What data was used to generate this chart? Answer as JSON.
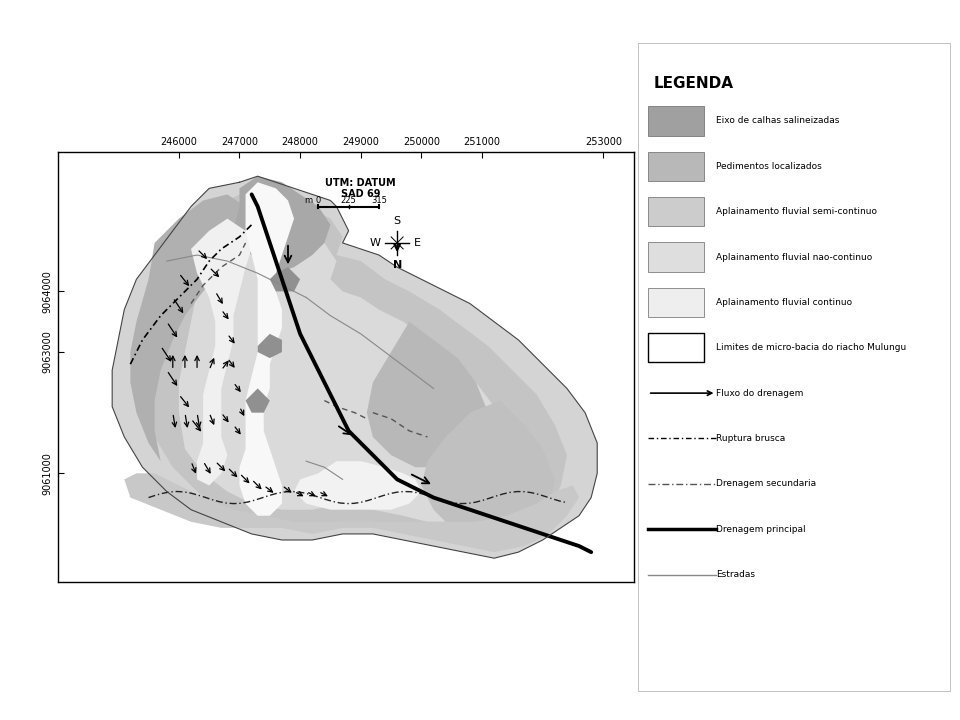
{
  "xlim": [
    244000,
    253500
  ],
  "ylim": [
    9059200,
    9066300
  ],
  "xticks": [
    246000,
    247000,
    248000,
    249000,
    250000,
    251000,
    253000
  ],
  "yticks": [
    9061000,
    9063000,
    9064000
  ],
  "background_color": "#ffffff",
  "colors": {
    "outer_basin": "#c8c8c8",
    "dark_gray": "#a0a0a0",
    "medium_gray": "#b8b8b8",
    "light_gray": "#d4d4d4",
    "lighter_gray": "#e0e0e0",
    "lightest_gray": "#eeeeee",
    "white_zone": "#f8f8f8",
    "river_white": "#ffffff",
    "main_river": "#000000",
    "boundary": "#333333"
  },
  "legend_items": [
    {
      "label": "Eixo de calhas salineizadas",
      "color": "#a0a0a0",
      "type": "patch"
    },
    {
      "label": "Pedimentos localizados",
      "color": "#b8b8b8",
      "type": "patch"
    },
    {
      "label": "Aplainamento fluvial semi-continuo",
      "color": "#cccccc",
      "type": "patch"
    },
    {
      "label": "Aplainamento fluvial nao-continuo",
      "color": "#dedede",
      "type": "patch"
    },
    {
      "label": "Aplainamento fluvial continuo",
      "color": "#eeeeee",
      "type": "patch"
    },
    {
      "label": "Limites de micro-bacia do riacho Mulungu",
      "color": "#ffffff",
      "type": "patch_border"
    },
    {
      "label": "Fluxo do drenagem",
      "color": "#000000",
      "type": "arrow"
    },
    {
      "label": "Ruptura brusca",
      "color": "#000000",
      "type": "dash_dot"
    },
    {
      "label": "Drenagem secundaria",
      "color": "#555555",
      "type": "dashed"
    },
    {
      "label": "Drenagem principal",
      "color": "#000000",
      "type": "solid_thick"
    },
    {
      "label": "Estradas",
      "color": "#888888",
      "type": "solid_thin"
    }
  ]
}
